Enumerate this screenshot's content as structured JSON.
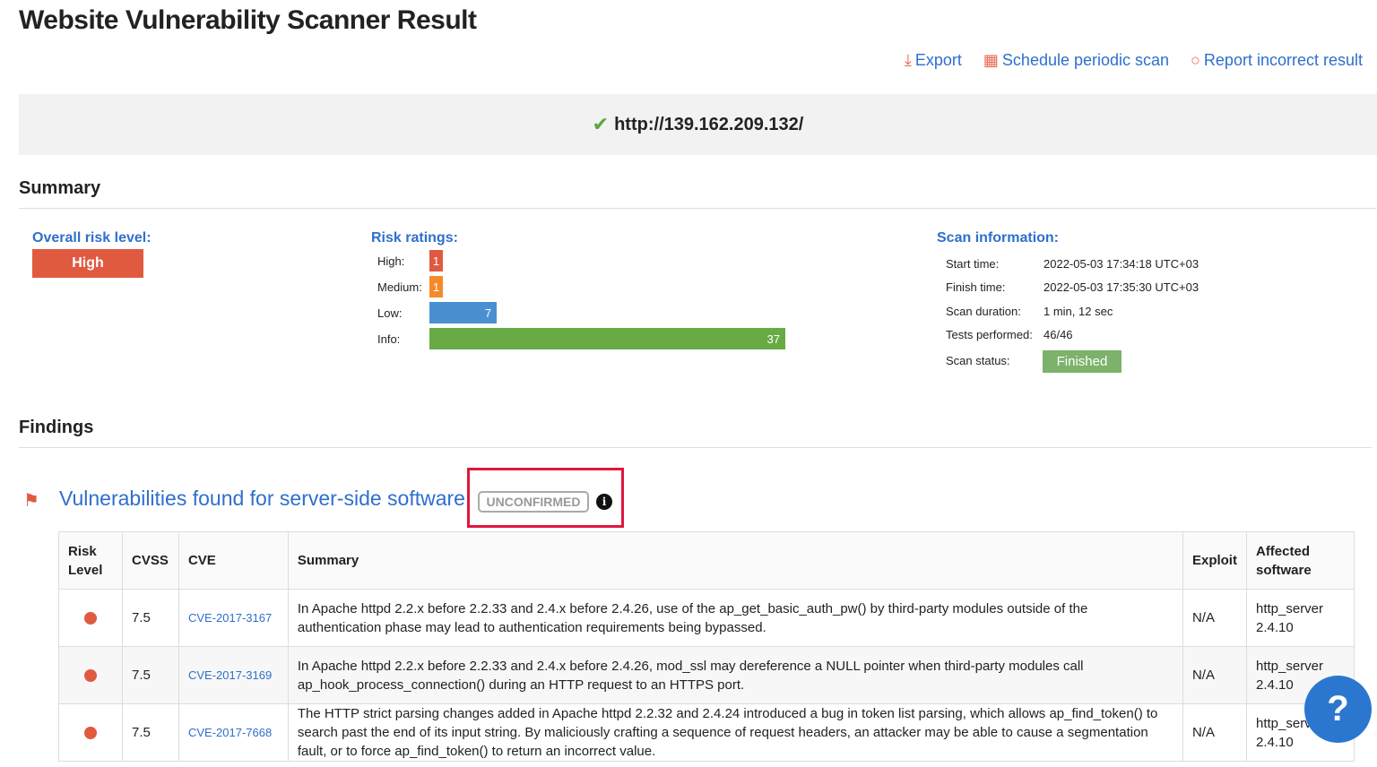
{
  "title": "Website Vulnerability Scanner Result",
  "actions": {
    "export": "Export",
    "schedule": "Schedule periodic scan",
    "report": "Report incorrect result"
  },
  "target_url": "http://139.162.209.132/",
  "summary": {
    "heading": "Summary",
    "overall_label": "Overall risk level:",
    "overall_value": "High",
    "risk_label": "Risk ratings:",
    "ratings": [
      {
        "label": "High:",
        "value": 1,
        "color": "#e05a40"
      },
      {
        "label": "Medium:",
        "value": 1,
        "color": "#f58a2a"
      },
      {
        "label": "Low:",
        "value": 7,
        "color": "#4a8fd0"
      },
      {
        "label": "Info:",
        "value": 37,
        "color": "#68ab45"
      }
    ],
    "scan_label": "Scan information:",
    "scan_info": [
      {
        "k": "Start time:",
        "v": "2022-05-03 17:34:18 UTC+03"
      },
      {
        "k": "Finish time:",
        "v": "2022-05-03 17:35:30 UTC+03"
      },
      {
        "k": "Scan duration:",
        "v": "1 min, 12 sec"
      },
      {
        "k": "Tests performed:",
        "v": "46/46"
      },
      {
        "k": "Scan status:",
        "v": "Finished"
      }
    ]
  },
  "findings": {
    "heading": "Findings",
    "title": "Vulnerabilities found for server-side software",
    "badge": "UNCONFIRMED",
    "columns": [
      "Risk Level",
      "CVSS",
      "CVE",
      "Summary",
      "Exploit",
      "Affected software"
    ],
    "rows": [
      {
        "cvss": "7.5",
        "cve": "CVE-2017-3167",
        "summary": "In Apache httpd 2.2.x before 2.2.33 and 2.4.x before 2.4.26, use of the ap_get_basic_auth_pw() by third-party modules outside of the authentication phase may lead to authentication requirements being bypassed.",
        "exploit": "N/A",
        "software": "http_server 2.4.10"
      },
      {
        "cvss": "7.5",
        "cve": "CVE-2017-3169",
        "summary": "In Apache httpd 2.2.x before 2.2.33 and 2.4.x before 2.4.26, mod_ssl may dereference a NULL pointer when third-party modules call ap_hook_process_connection() during an HTTP request to an HTTPS port.",
        "exploit": "N/A",
        "software": "http_server 2.4.10"
      },
      {
        "cvss": "7.5",
        "cve": "CVE-2017-7668",
        "summary": "The HTTP strict parsing changes added in Apache httpd 2.2.32 and 2.4.24 introduced a bug in token list parsing, which allows ap_find_token() to search past the end of its input string. By maliciously crafting a sequence of request headers, an attacker may be able to cause a segmentation fault, or to force ap_find_token() to return an incorrect value.",
        "exploit": "N/A",
        "software": "http_server 2.4.10"
      }
    ]
  },
  "help": "?"
}
